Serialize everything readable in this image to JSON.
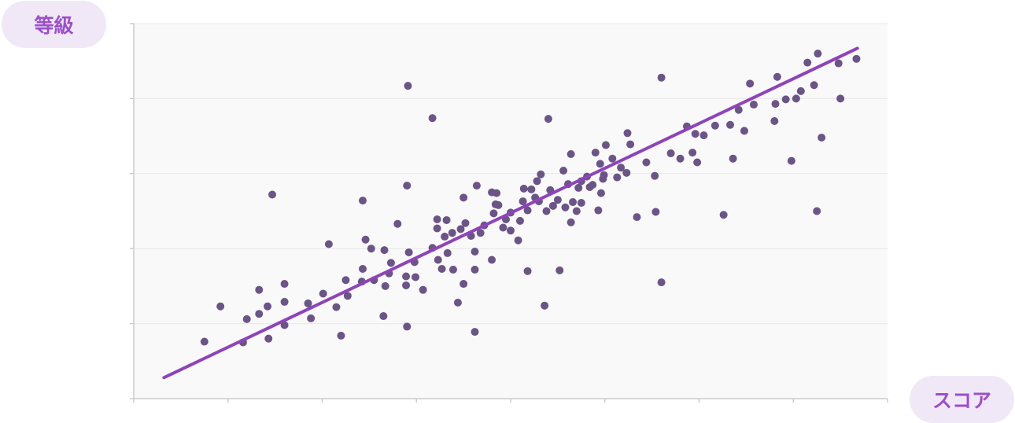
{
  "chart_data": {
    "type": "scatter",
    "xlabel": "スコア",
    "ylabel": "等級",
    "xlim": [
      0,
      8
    ],
    "ylim": [
      0,
      5
    ],
    "grid": true,
    "colors": {
      "points": "#6b5486",
      "trend": "#8e44b8",
      "plot_bg": "#f9f9f9",
      "grid": "#e8e8e8",
      "axis": "#cccccc"
    },
    "trendline": {
      "x": [
        0.32,
        7.68
      ],
      "y": [
        0.28,
        4.67
      ]
    },
    "points": [
      {
        "x": 0.75,
        "y": 0.76
      },
      {
        "x": 0.92,
        "y": 1.23
      },
      {
        "x": 1.16,
        "y": 0.75
      },
      {
        "x": 1.2,
        "y": 1.06
      },
      {
        "x": 1.33,
        "y": 1.13
      },
      {
        "x": 1.33,
        "y": 1.45
      },
      {
        "x": 1.42,
        "y": 1.23
      },
      {
        "x": 1.43,
        "y": 0.8
      },
      {
        "x": 1.47,
        "y": 2.72
      },
      {
        "x": 1.6,
        "y": 0.98
      },
      {
        "x": 1.6,
        "y": 1.29
      },
      {
        "x": 1.6,
        "y": 1.53
      },
      {
        "x": 1.85,
        "y": 1.27
      },
      {
        "x": 1.88,
        "y": 1.07
      },
      {
        "x": 2.01,
        "y": 1.4
      },
      {
        "x": 2.07,
        "y": 2.06
      },
      {
        "x": 2.15,
        "y": 1.22
      },
      {
        "x": 2.2,
        "y": 0.84
      },
      {
        "x": 2.25,
        "y": 1.58
      },
      {
        "x": 2.27,
        "y": 1.37
      },
      {
        "x": 2.42,
        "y": 1.56
      },
      {
        "x": 2.43,
        "y": 1.73
      },
      {
        "x": 2.43,
        "y": 2.64
      },
      {
        "x": 2.46,
        "y": 2.12
      },
      {
        "x": 2.52,
        "y": 2.0
      },
      {
        "x": 2.55,
        "y": 1.58
      },
      {
        "x": 2.65,
        "y": 1.1
      },
      {
        "x": 2.66,
        "y": 1.98
      },
      {
        "x": 2.67,
        "y": 1.5
      },
      {
        "x": 2.71,
        "y": 1.67
      },
      {
        "x": 2.73,
        "y": 1.81
      },
      {
        "x": 2.8,
        "y": 2.33
      },
      {
        "x": 2.89,
        "y": 1.63
      },
      {
        "x": 2.89,
        "y": 1.51
      },
      {
        "x": 2.9,
        "y": 0.96
      },
      {
        "x": 2.9,
        "y": 2.84
      },
      {
        "x": 2.91,
        "y": 4.17
      },
      {
        "x": 2.92,
        "y": 1.95
      },
      {
        "x": 2.98,
        "y": 1.82
      },
      {
        "x": 2.99,
        "y": 1.62
      },
      {
        "x": 3.07,
        "y": 1.45
      },
      {
        "x": 3.17,
        "y": 2.01
      },
      {
        "x": 3.17,
        "y": 3.74
      },
      {
        "x": 3.22,
        "y": 2.39
      },
      {
        "x": 3.22,
        "y": 2.27
      },
      {
        "x": 3.23,
        "y": 1.85
      },
      {
        "x": 3.27,
        "y": 1.73
      },
      {
        "x": 3.3,
        "y": 2.16
      },
      {
        "x": 3.32,
        "y": 2.38
      },
      {
        "x": 3.33,
        "y": 1.94
      },
      {
        "x": 3.38,
        "y": 2.21
      },
      {
        "x": 3.39,
        "y": 1.72
      },
      {
        "x": 3.44,
        "y": 1.28
      },
      {
        "x": 3.47,
        "y": 2.26
      },
      {
        "x": 3.5,
        "y": 1.53
      },
      {
        "x": 3.5,
        "y": 2.68
      },
      {
        "x": 3.52,
        "y": 2.34
      },
      {
        "x": 3.58,
        "y": 2.17
      },
      {
        "x": 3.62,
        "y": 1.72
      },
      {
        "x": 3.62,
        "y": 0.89
      },
      {
        "x": 3.62,
        "y": 1.96
      },
      {
        "x": 3.64,
        "y": 2.84
      },
      {
        "x": 3.68,
        "y": 2.21
      },
      {
        "x": 3.72,
        "y": 2.31
      },
      {
        "x": 3.8,
        "y": 2.75
      },
      {
        "x": 3.8,
        "y": 1.85
      },
      {
        "x": 3.82,
        "y": 2.47
      },
      {
        "x": 3.84,
        "y": 2.59
      },
      {
        "x": 3.85,
        "y": 2.74
      },
      {
        "x": 3.87,
        "y": 2.58
      },
      {
        "x": 3.92,
        "y": 2.28
      },
      {
        "x": 3.95,
        "y": 2.39
      },
      {
        "x": 4.0,
        "y": 2.48
      },
      {
        "x": 4.0,
        "y": 2.24
      },
      {
        "x": 4.08,
        "y": 2.11
      },
      {
        "x": 4.1,
        "y": 2.37
      },
      {
        "x": 4.13,
        "y": 2.63
      },
      {
        "x": 4.14,
        "y": 2.8
      },
      {
        "x": 4.18,
        "y": 2.51
      },
      {
        "x": 4.18,
        "y": 1.7
      },
      {
        "x": 4.22,
        "y": 2.79
      },
      {
        "x": 4.26,
        "y": 2.68
      },
      {
        "x": 4.28,
        "y": 2.9
      },
      {
        "x": 4.3,
        "y": 2.63
      },
      {
        "x": 4.32,
        "y": 2.99
      },
      {
        "x": 4.36,
        "y": 1.24
      },
      {
        "x": 4.38,
        "y": 2.5
      },
      {
        "x": 4.4,
        "y": 3.73
      },
      {
        "x": 4.42,
        "y": 2.78
      },
      {
        "x": 4.45,
        "y": 2.57
      },
      {
        "x": 4.5,
        "y": 2.65
      },
      {
        "x": 4.52,
        "y": 1.71
      },
      {
        "x": 4.56,
        "y": 3.04
      },
      {
        "x": 4.58,
        "y": 2.55
      },
      {
        "x": 4.61,
        "y": 2.86
      },
      {
        "x": 4.64,
        "y": 3.26
      },
      {
        "x": 4.64,
        "y": 2.35
      },
      {
        "x": 4.66,
        "y": 2.62
      },
      {
        "x": 4.7,
        "y": 2.5
      },
      {
        "x": 4.72,
        "y": 2.81
      },
      {
        "x": 4.75,
        "y": 2.61
      },
      {
        "x": 4.75,
        "y": 2.9
      },
      {
        "x": 4.81,
        "y": 2.96
      },
      {
        "x": 4.84,
        "y": 2.82
      },
      {
        "x": 4.87,
        "y": 2.85
      },
      {
        "x": 4.9,
        "y": 3.28
      },
      {
        "x": 4.93,
        "y": 2.51
      },
      {
        "x": 4.95,
        "y": 3.13
      },
      {
        "x": 4.96,
        "y": 2.74
      },
      {
        "x": 4.98,
        "y": 2.93
      },
      {
        "x": 4.99,
        "y": 2.98
      },
      {
        "x": 5.01,
        "y": 3.38
      },
      {
        "x": 5.08,
        "y": 3.2
      },
      {
        "x": 5.13,
        "y": 2.95
      },
      {
        "x": 5.17,
        "y": 3.08
      },
      {
        "x": 5.23,
        "y": 3.01
      },
      {
        "x": 5.24,
        "y": 3.54
      },
      {
        "x": 5.27,
        "y": 3.39
      },
      {
        "x": 5.34,
        "y": 2.42
      },
      {
        "x": 5.44,
        "y": 3.15
      },
      {
        "x": 5.53,
        "y": 2.97
      },
      {
        "x": 5.54,
        "y": 2.49
      },
      {
        "x": 5.6,
        "y": 1.55
      },
      {
        "x": 5.6,
        "y": 4.28
      },
      {
        "x": 5.7,
        "y": 3.27
      },
      {
        "x": 5.8,
        "y": 3.2
      },
      {
        "x": 5.87,
        "y": 3.63
      },
      {
        "x": 5.93,
        "y": 3.28
      },
      {
        "x": 5.96,
        "y": 3.53
      },
      {
        "x": 5.98,
        "y": 3.15
      },
      {
        "x": 6.05,
        "y": 3.51
      },
      {
        "x": 6.17,
        "y": 3.64
      },
      {
        "x": 6.26,
        "y": 2.45
      },
      {
        "x": 6.33,
        "y": 3.65
      },
      {
        "x": 6.36,
        "y": 3.2
      },
      {
        "x": 6.42,
        "y": 3.85
      },
      {
        "x": 6.48,
        "y": 3.57
      },
      {
        "x": 6.54,
        "y": 4.2
      },
      {
        "x": 6.58,
        "y": 3.92
      },
      {
        "x": 6.8,
        "y": 3.7
      },
      {
        "x": 6.81,
        "y": 3.93
      },
      {
        "x": 6.83,
        "y": 4.29
      },
      {
        "x": 6.92,
        "y": 3.99
      },
      {
        "x": 6.98,
        "y": 3.17
      },
      {
        "x": 7.03,
        "y": 4.0
      },
      {
        "x": 7.08,
        "y": 4.1
      },
      {
        "x": 7.15,
        "y": 4.48
      },
      {
        "x": 7.22,
        "y": 4.18
      },
      {
        "x": 7.25,
        "y": 2.5
      },
      {
        "x": 7.26,
        "y": 4.6
      },
      {
        "x": 7.3,
        "y": 3.48
      },
      {
        "x": 7.48,
        "y": 4.47
      },
      {
        "x": 7.5,
        "y": 4.0
      },
      {
        "x": 7.67,
        "y": 4.53
      }
    ]
  }
}
